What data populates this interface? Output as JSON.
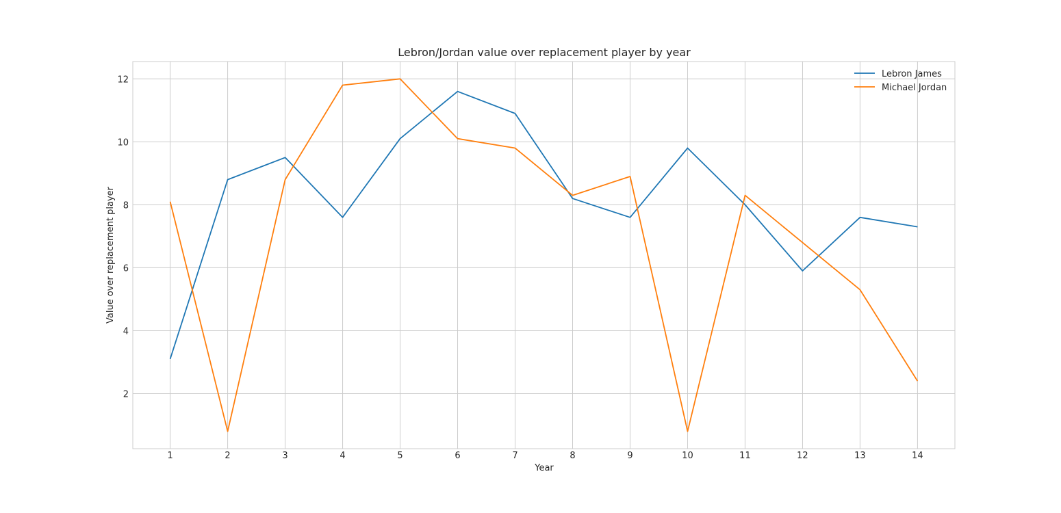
{
  "chart_data": {
    "type": "line",
    "title": "Lebron/Jordan value over replacement player by year",
    "xlabel": "Year",
    "ylabel": "Value over replacement player",
    "x": [
      1,
      2,
      3,
      4,
      5,
      6,
      7,
      8,
      9,
      10,
      11,
      12,
      13,
      14
    ],
    "xlim": [
      0.35,
      14.65
    ],
    "ylim": [
      0.25,
      12.55
    ],
    "yticks": [
      2,
      4,
      6,
      8,
      10,
      12
    ],
    "grid": true,
    "legend_position": "top-right",
    "series": [
      {
        "name": "Lebron James",
        "color": "#1f77b4",
        "values": [
          3.1,
          8.8,
          9.5,
          7.6,
          10.1,
          11.6,
          10.9,
          8.2,
          7.6,
          9.8,
          8.0,
          5.9,
          7.6,
          7.3
        ]
      },
      {
        "name": "Michael Jordan",
        "color": "#ff7f0e",
        "values": [
          8.1,
          0.8,
          8.8,
          11.8,
          12.0,
          10.1,
          9.8,
          8.3,
          8.9,
          0.8,
          8.3,
          6.8,
          5.3,
          2.4
        ]
      }
    ]
  }
}
